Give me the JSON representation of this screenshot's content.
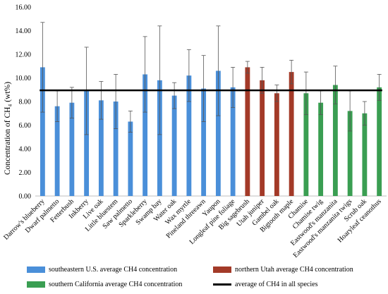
{
  "chart_data": {
    "type": "bar",
    "title": "",
    "ylabel": "Concentration of CH₄ (wt%)",
    "xlabel": "",
    "ylim": [
      0,
      16
    ],
    "yticks": [
      "0.00",
      "2.00",
      "4.00",
      "6.00",
      "8.00",
      "10.00",
      "12.00",
      "14.00",
      "16.00"
    ],
    "categories": [
      "Darrow's blueberry",
      "Dwarf palmetto",
      "Fetterbush",
      "Inkberry",
      "Live oak",
      "Little bluestem",
      "Saw palmetto",
      "Sparkleberry",
      "Swamp bay",
      "Water oak",
      "Wax myrtle",
      "Pineland threeawn",
      "Yaupon",
      "Longleaf pine foliage",
      "Big sagebrush",
      "Utah juniper",
      "Gambel oak",
      "Bigtooth maple",
      "Chamise",
      "Chamise twig",
      "Eastwood's manzanita",
      "Eastwood's manzanita twigs",
      "Scrub oak",
      "Hoaryleaf ceanothus"
    ],
    "values": [
      10.9,
      7.6,
      7.9,
      8.9,
      8.1,
      8.0,
      6.3,
      10.3,
      9.8,
      8.5,
      10.2,
      9.1,
      10.6,
      9.2,
      10.9,
      9.8,
      8.7,
      10.5,
      8.7,
      7.9,
      9.4,
      7.2,
      7.0,
      9.2
    ],
    "errors": [
      3.8,
      1.3,
      1.3,
      3.7,
      1.6,
      2.3,
      0.9,
      3.2,
      4.6,
      1.1,
      2.2,
      2.8,
      3.8,
      1.7,
      0.5,
      1.1,
      0.7,
      1.0,
      1.8,
      1.0,
      1.6,
      1.7,
      1.0,
      1.1
    ],
    "groups": [
      0,
      0,
      0,
      0,
      0,
      0,
      0,
      0,
      0,
      0,
      0,
      0,
      0,
      0,
      1,
      1,
      1,
      1,
      2,
      2,
      2,
      2,
      2,
      2
    ],
    "group_colors": [
      "#4a8fd9",
      "#a33a28",
      "#3a9e52"
    ],
    "average_line": 8.95,
    "average_color": "#000000",
    "legend_position": "bottom",
    "legend": [
      "southeastern U.S. average CH4 concentration",
      "northern Utah average CH4 concentration",
      "southern California average CH4 concentration",
      "average of CH4 in all species"
    ]
  }
}
